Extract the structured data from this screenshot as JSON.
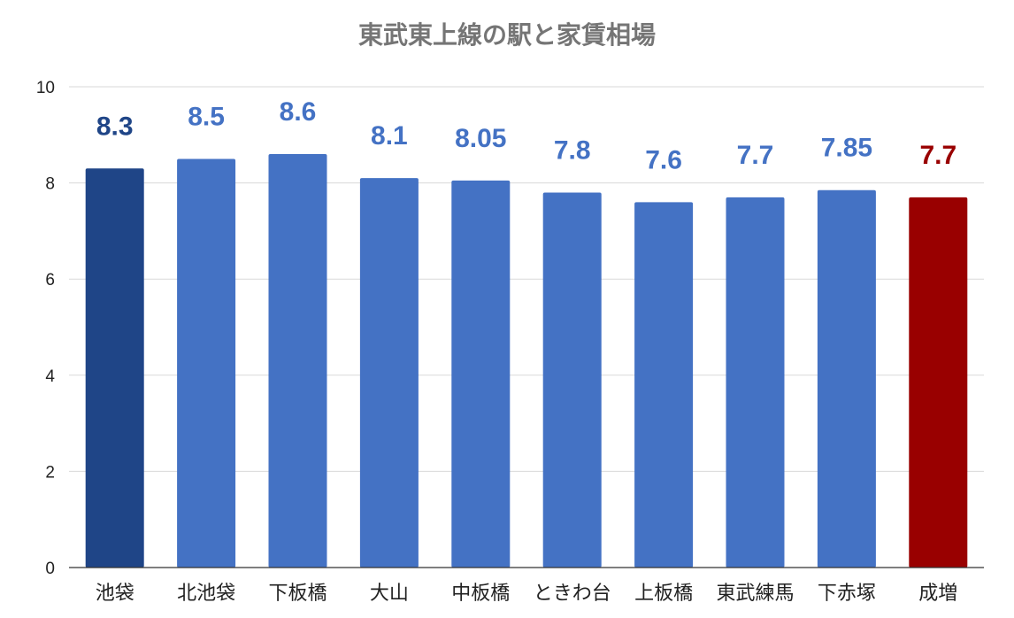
{
  "chart_data": {
    "type": "bar",
    "title": "東武東上線の駅と家賃相場",
    "xlabel": "",
    "ylabel": "",
    "ylim": [
      0,
      10
    ],
    "yticks": [
      0,
      2,
      4,
      6,
      8,
      10
    ],
    "grid": true,
    "categories": [
      "池袋",
      "北池袋",
      "下板橋",
      "大山",
      "中板橋",
      "ときわ台",
      "上板橋",
      "東武練馬",
      "下赤塚",
      "成増"
    ],
    "values": [
      8.3,
      8.5,
      8.6,
      8.1,
      8.05,
      7.8,
      7.6,
      7.7,
      7.85,
      7.7
    ],
    "labels": [
      "8.3",
      "8.5",
      "8.6",
      "8.1",
      "8.05",
      "7.8",
      "7.6",
      "7.7",
      "7.85",
      "7.7"
    ],
    "bar_colors": [
      "#1f4587",
      "#4472c4",
      "#4472c4",
      "#4472c4",
      "#4472c4",
      "#4472c4",
      "#4472c4",
      "#4472c4",
      "#4472c4",
      "#990000"
    ],
    "label_colors": [
      "#1f4587",
      "#4472c4",
      "#4472c4",
      "#4472c4",
      "#4472c4",
      "#4472c4",
      "#4472c4",
      "#4472c4",
      "#4472c4",
      "#990000"
    ]
  }
}
